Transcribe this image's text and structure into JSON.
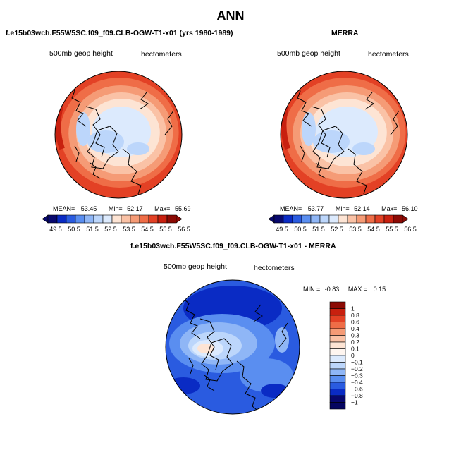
{
  "page_title": "ANN",
  "chart_data": [
    {
      "type": "heatmap",
      "projection": "north-polar-stereographic",
      "title": "f.e15b03wch.F55W5SC.f09_f09.CLB-OGW-T1-x01 (yrs 1980-1989)",
      "field_label": "500mb geop height",
      "units_label": "hectometers",
      "stats": {
        "mean_label": "MEAN=",
        "mean": "53.45",
        "min_label": "Min=",
        "min": "52.17",
        "max_label": "Max=",
        "max": "55.69"
      },
      "colorbar_ticks": [
        "49.5",
        "50.5",
        "51.5",
        "52.5",
        "53.5",
        "54.5",
        "55.5",
        "56.5"
      ]
    },
    {
      "type": "heatmap",
      "projection": "north-polar-stereographic",
      "title": "MERRA",
      "field_label": "500mb geop height",
      "units_label": "hectometers",
      "stats": {
        "mean_label": "MEAN=",
        "mean": "53.77",
        "min_label": "Min=",
        "min": "52.14",
        "max_label": "Max=",
        "max": "56.10"
      },
      "colorbar_ticks": [
        "49.5",
        "50.5",
        "51.5",
        "52.5",
        "53.5",
        "54.5",
        "55.5",
        "56.5"
      ]
    },
    {
      "type": "heatmap",
      "projection": "north-polar-stereographic",
      "title": "f.e15b03wch.F55W5SC.f09_f09.CLB-OGW-T1-x01 - MERRA",
      "field_label": "500mb geop height",
      "units_label": "hectometers",
      "stats": {
        "min_label": "MIN =",
        "min": "-0.83",
        "max_label": "MAX =",
        "max": "0.15"
      },
      "colorbar_ticks": [
        "1",
        "0.8",
        "0.6",
        "0.4",
        "0.3",
        "0.2",
        "0.1",
        "0",
        "−0.1",
        "−0.2",
        "−0.3",
        "−0.4",
        "−0.6",
        "−0.8",
        "−1"
      ]
    }
  ],
  "colors": {
    "abs_scale": [
      "#08086e",
      "#0a2bc4",
      "#2a5be0",
      "#5a8ef0",
      "#8fb6f6",
      "#bcd6fb",
      "#dceafd",
      "#fde4d4",
      "#fac2a6",
      "#f59b76",
      "#ef6d47",
      "#e34125",
      "#c8200f",
      "#8c0a04"
    ],
    "diff_scale": [
      "#8c0a04",
      "#c8200f",
      "#e34125",
      "#ef6d47",
      "#f59b76",
      "#fac2a6",
      "#fde4d4",
      "#fff6f0",
      "#dceafd",
      "#bcd6fb",
      "#8fb6f6",
      "#5a8ef0",
      "#2a5be0",
      "#0a2bc4",
      "#08086e",
      "#050560"
    ]
  }
}
